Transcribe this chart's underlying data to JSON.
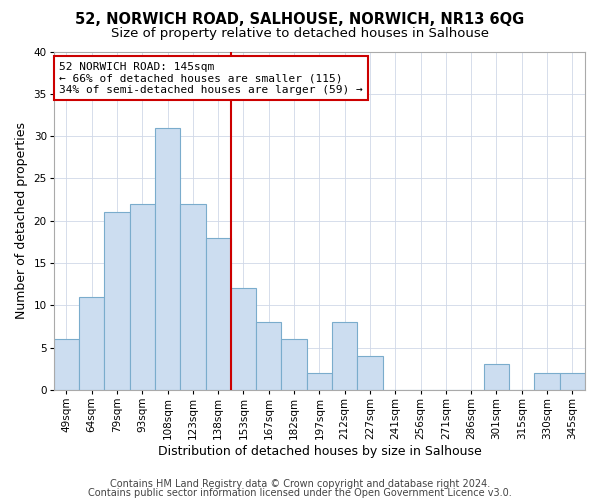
{
  "title": "52, NORWICH ROAD, SALHOUSE, NORWICH, NR13 6QG",
  "subtitle": "Size of property relative to detached houses in Salhouse",
  "xlabel": "Distribution of detached houses by size in Salhouse",
  "ylabel": "Number of detached properties",
  "categories": [
    "49sqm",
    "64sqm",
    "79sqm",
    "93sqm",
    "108sqm",
    "123sqm",
    "138sqm",
    "153sqm",
    "167sqm",
    "182sqm",
    "197sqm",
    "212sqm",
    "227sqm",
    "241sqm",
    "256sqm",
    "271sqm",
    "286sqm",
    "301sqm",
    "315sqm",
    "330sqm",
    "345sqm"
  ],
  "values": [
    6,
    11,
    21,
    22,
    31,
    22,
    18,
    12,
    8,
    6,
    2,
    8,
    4,
    0,
    0,
    0,
    0,
    3,
    0,
    2,
    2
  ],
  "bar_color": "#ccddf0",
  "bar_edge_color": "#7aaccc",
  "vline_color": "#cc0000",
  "vline_pos": 7.5,
  "annotation_text": "52 NORWICH ROAD: 145sqm\n← 66% of detached houses are smaller (115)\n34% of semi-detached houses are larger (59) →",
  "annotation_box_facecolor": "#ffffff",
  "annotation_box_edgecolor": "#cc0000",
  "footer1": "Contains HM Land Registry data © Crown copyright and database right 2024.",
  "footer2": "Contains public sector information licensed under the Open Government Licence v3.0.",
  "ylim": [
    0,
    40
  ],
  "yticks": [
    0,
    5,
    10,
    15,
    20,
    25,
    30,
    35,
    40
  ],
  "fig_background_color": "#ffffff",
  "plot_background_color": "#ffffff",
  "title_fontsize": 10.5,
  "subtitle_fontsize": 9.5,
  "xlabel_fontsize": 9,
  "ylabel_fontsize": 9,
  "tick_fontsize": 7.5,
  "footer_fontsize": 7,
  "annotation_fontsize": 8,
  "grid_color": "#d0d8e8"
}
